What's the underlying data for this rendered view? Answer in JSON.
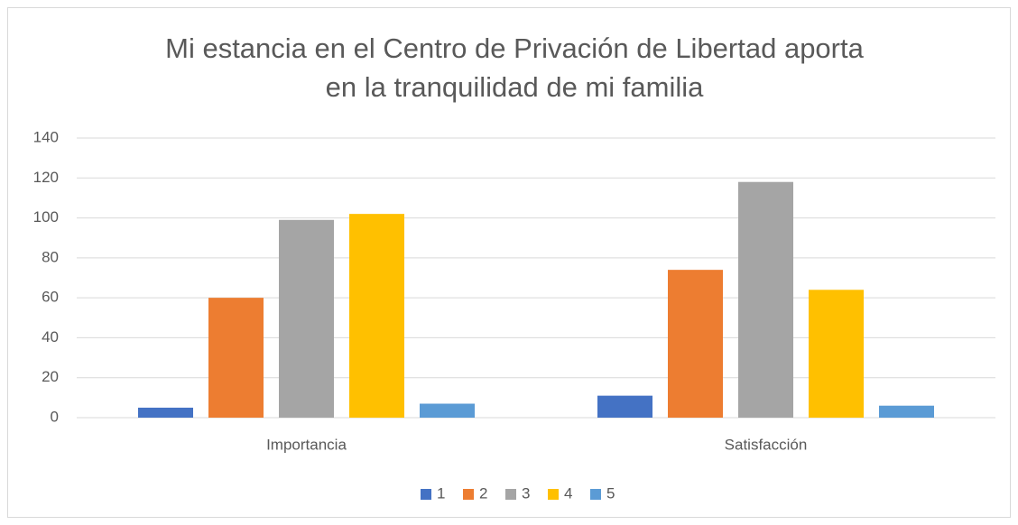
{
  "chart_data": {
    "type": "bar",
    "title": [
      "Mi estancia en el Centro de Privación de Libertad aporta",
      "en la tranquilidad de mi familia"
    ],
    "categories": [
      "Importancia",
      "Satisfacción"
    ],
    "series": [
      {
        "name": "1",
        "color": "#4472c4",
        "values": [
          5,
          11
        ]
      },
      {
        "name": "2",
        "color": "#ed7d31",
        "values": [
          60,
          74
        ]
      },
      {
        "name": "3",
        "color": "#a5a5a5",
        "values": [
          99,
          118
        ]
      },
      {
        "name": "4",
        "color": "#ffc000",
        "values": [
          102,
          64
        ]
      },
      {
        "name": "5",
        "color": "#5b9bd5",
        "values": [
          7,
          6
        ]
      }
    ],
    "ylim": [
      0,
      140
    ],
    "yticks": [
      0,
      20,
      40,
      60,
      80,
      100,
      120,
      140
    ],
    "grid": true,
    "legend": "bottom"
  }
}
